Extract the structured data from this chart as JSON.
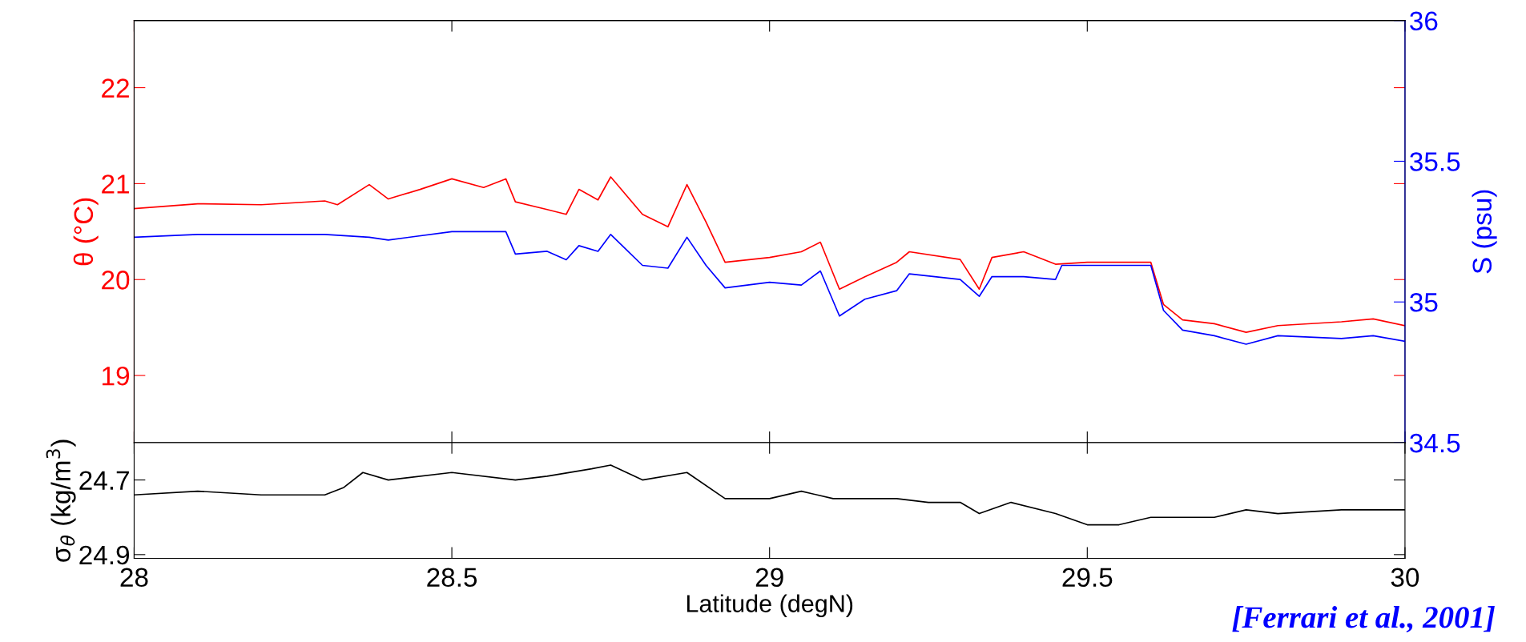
{
  "chart_data": [
    {
      "type": "line",
      "ylabel": "θ (°C)",
      "y2label": "S (psu)",
      "xlim": [
        28,
        30
      ],
      "xticks": [
        28,
        28.5,
        29,
        29.5,
        30
      ],
      "ylim": [
        18.3,
        22.7
      ],
      "yticks": [
        19,
        20,
        21,
        22
      ],
      "y2lim": [
        34.5,
        36
      ],
      "y2ticks": [
        34.5,
        35,
        35.5,
        36
      ],
      "tick_labels": "y",
      "grid": false,
      "legend": false,
      "marker": "none",
      "line_style": "solid",
      "x": [
        28.0,
        28.1,
        28.2,
        28.3,
        28.32,
        28.37,
        28.4,
        28.45,
        28.5,
        28.55,
        28.585,
        28.6,
        28.65,
        28.68,
        28.7,
        28.73,
        28.75,
        28.8,
        28.84,
        28.87,
        28.9,
        28.93,
        29.0,
        29.05,
        29.08,
        29.11,
        29.15,
        29.2,
        29.22,
        29.3,
        29.33,
        29.35,
        29.4,
        29.45,
        29.5,
        29.6,
        29.62,
        29.65,
        29.7,
        29.75,
        29.8,
        29.9,
        29.95,
        30.0
      ],
      "series": [
        {
          "color": "#ff0000",
          "values": [
            20.74,
            20.79,
            20.78,
            20.82,
            20.78,
            20.99,
            20.84,
            20.94,
            21.05,
            20.96,
            21.05,
            20.81,
            20.73,
            20.68,
            20.94,
            20.83,
            21.07,
            20.68,
            20.55,
            20.99,
            20.6,
            20.18,
            20.23,
            20.29,
            20.39,
            19.9,
            20.03,
            20.18,
            20.29,
            20.21,
            19.9,
            20.23,
            20.29,
            20.16,
            20.18,
            20.18,
            19.74,
            19.58,
            19.54,
            19.45,
            19.52,
            19.56,
            19.59,
            19.52
          ]
        },
        {
          "color": "#0000ff",
          "axis": "y2",
          "x": [
            28.0,
            28.1,
            28.2,
            28.3,
            28.37,
            28.4,
            28.5,
            28.585,
            28.6,
            28.65,
            28.68,
            28.7,
            28.73,
            28.75,
            28.8,
            28.84,
            28.87,
            28.9,
            28.93,
            29.0,
            29.05,
            29.08,
            29.11,
            29.15,
            29.2,
            29.22,
            29.3,
            29.33,
            29.35,
            29.4,
            29.45,
            29.46,
            29.5,
            29.6,
            29.62,
            29.65,
            29.7,
            29.75,
            29.8,
            29.9,
            29.95,
            30.0
          ],
          "values": [
            35.23,
            35.24,
            35.24,
            35.24,
            35.23,
            35.22,
            35.25,
            35.25,
            35.17,
            35.18,
            35.15,
            35.2,
            35.18,
            35.24,
            35.13,
            35.12,
            35.23,
            35.13,
            35.05,
            35.07,
            35.06,
            35.11,
            34.95,
            35.01,
            35.04,
            35.1,
            35.08,
            35.02,
            35.09,
            35.09,
            35.08,
            35.13,
            35.13,
            35.13,
            34.97,
            34.9,
            34.88,
            34.85,
            34.88,
            34.87,
            34.88,
            34.86
          ]
        }
      ]
    },
    {
      "type": "line",
      "ylabel": "σ$_{θ}$ (kg/m$^{3}$)",
      "xlabel": "Latitude (degN)",
      "xlim": [
        28,
        30
      ],
      "xticks": [
        28,
        28.5,
        29,
        29.5,
        30
      ],
      "ylim": [
        24.91,
        24.6
      ],
      "yticks": [
        24.7,
        24.9
      ],
      "grid": false,
      "legend": false,
      "marker": "none",
      "line_style": "solid",
      "annotations": [
        "[Ferrari et al., 2001]"
      ],
      "x": [
        28.0,
        28.1,
        28.2,
        28.3,
        28.33,
        28.36,
        28.4,
        28.5,
        28.6,
        28.65,
        28.72,
        28.75,
        28.8,
        28.87,
        28.93,
        29.0,
        29.05,
        29.1,
        29.2,
        29.25,
        29.3,
        29.33,
        29.38,
        29.45,
        29.5,
        29.55,
        29.6,
        29.65,
        29.7,
        29.75,
        29.8,
        29.9,
        30.0
      ],
      "series": [
        {
          "color": "#000000",
          "values": [
            24.74,
            24.73,
            24.74,
            24.74,
            24.72,
            24.68,
            24.7,
            24.68,
            24.7,
            24.69,
            24.67,
            24.66,
            24.7,
            24.68,
            24.75,
            24.75,
            24.73,
            24.75,
            24.75,
            24.76,
            24.76,
            24.79,
            24.76,
            24.79,
            24.82,
            24.82,
            24.8,
            24.8,
            24.8,
            24.78,
            24.79,
            24.78,
            24.78
          ]
        }
      ]
    }
  ]
}
